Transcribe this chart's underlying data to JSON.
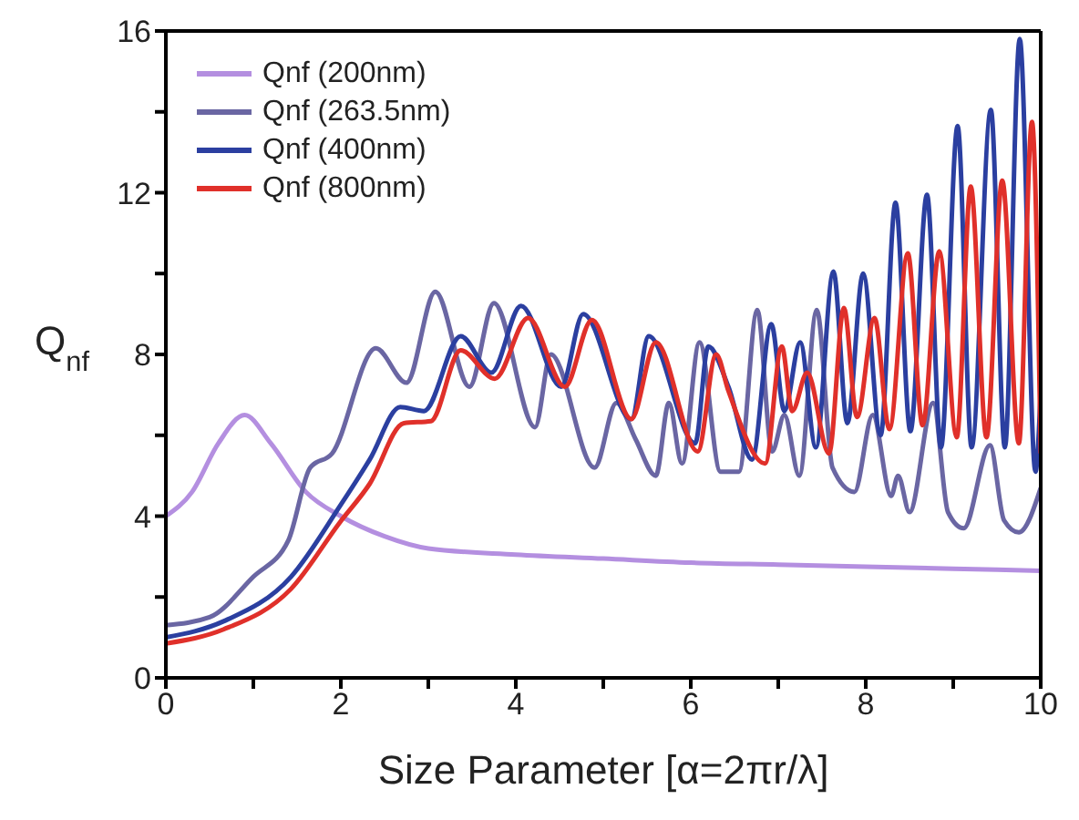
{
  "chart_data": {
    "type": "line",
    "xlabel": "Size Parameter [α=2πr/λ]",
    "ylabel": "Q$_{nf}$",
    "xlim": [
      0,
      10
    ],
    "ylim": [
      0,
      16
    ],
    "xticks": [
      0,
      {
        "value": 1,
        "label": null
      },
      2,
      {
        "value": 3,
        "label": null
      },
      4,
      {
        "value": 5,
        "label": null
      },
      6,
      {
        "value": 7,
        "label": null
      },
      8,
      {
        "value": 9,
        "label": null
      },
      10
    ],
    "yticks": [
      0,
      {
        "value": 2,
        "label": null
      },
      4,
      {
        "value": 6,
        "label": null
      },
      8,
      {
        "value": 10,
        "label": null
      },
      12,
      {
        "value": 14,
        "label": null
      },
      16
    ],
    "grid": false,
    "legend": "top left",
    "marker": "none",
    "line_style": "solid",
    "series": [
      {
        "name": "Qnf (200nm)",
        "color": "#b48fe0",
        "x": [
          0,
          0.3,
          0.6,
          0.9,
          1.2,
          1.6,
          2.0,
          2.5,
          3,
          4,
          5,
          6,
          7,
          8,
          9,
          10
        ],
        "values": [
          4.0,
          4.6,
          5.8,
          6.5,
          5.8,
          4.6,
          4.0,
          3.5,
          3.2,
          3.05,
          2.95,
          2.85,
          2.8,
          2.75,
          2.7,
          2.65
        ]
      },
      {
        "name": "Qnf (263.5nm)",
        "color": "#6a66a3",
        "x": [
          0,
          0.5,
          1.0,
          1.4,
          1.65,
          1.9,
          2.4,
          2.75,
          3.08,
          3.47,
          3.75,
          4.22,
          4.4,
          4.9,
          5.15,
          5.37,
          5.6,
          5.75,
          5.9,
          6.1,
          6.34,
          6.55,
          6.76,
          6.93,
          7.07,
          7.24,
          7.44,
          7.62,
          7.87,
          8.08,
          8.29,
          8.37,
          8.5,
          8.77,
          8.94,
          9.12,
          9.42,
          9.58,
          9.75,
          10.0
        ],
        "values": [
          1.3,
          1.5,
          2.5,
          3.4,
          5.2,
          5.55,
          8.15,
          7.3,
          9.55,
          7.2,
          9.27,
          6.2,
          8.0,
          5.2,
          6.8,
          5.9,
          5.0,
          6.8,
          5.3,
          8.3,
          5.1,
          5.1,
          9.1,
          5.6,
          6.5,
          5.0,
          9.1,
          5.2,
          4.6,
          6.5,
          4.5,
          5.0,
          4.1,
          6.8,
          4.1,
          3.7,
          5.75,
          3.9,
          3.6,
          4.7
        ]
      },
      {
        "name": "Qnf (400nm)",
        "color": "#2b3fa0",
        "x": [
          0,
          0.66,
          1.43,
          1.99,
          2.33,
          2.68,
          2.95,
          3.37,
          3.72,
          4.06,
          4.52,
          4.77,
          5.32,
          5.52,
          6.05,
          6.2,
          6.43,
          6.7,
          6.92,
          7.07,
          7.25,
          7.43,
          7.63,
          7.79,
          7.97,
          8.17,
          8.34,
          8.51,
          8.7,
          8.86,
          9.05,
          9.21,
          9.43,
          9.59,
          9.76,
          9.94,
          10.0
        ],
        "values": [
          1.0,
          1.4,
          2.5,
          4.25,
          5.4,
          6.7,
          6.6,
          8.45,
          7.55,
          9.2,
          7.2,
          9.0,
          6.4,
          8.45,
          5.8,
          8.2,
          7.2,
          5.4,
          8.75,
          6.6,
          8.3,
          5.7,
          10.05,
          6.3,
          10.0,
          6.0,
          11.75,
          6.1,
          11.95,
          5.7,
          13.65,
          5.7,
          14.05,
          5.7,
          15.8,
          5.1,
          7.1
        ]
      },
      {
        "name": "Qnf (800nm)",
        "color": "#e0302a",
        "x": [
          0,
          0.66,
          1.43,
          1.99,
          2.33,
          2.72,
          3.03,
          3.37,
          3.76,
          4.14,
          4.56,
          4.87,
          5.32,
          5.6,
          6.08,
          6.29,
          6.43,
          6.85,
          7.04,
          7.16,
          7.33,
          7.58,
          7.75,
          7.9,
          8.1,
          8.27,
          8.48,
          8.65,
          8.84,
          9.04,
          9.2,
          9.38,
          9.56,
          9.75,
          9.9,
          10.0
        ],
        "values": [
          0.85,
          1.2,
          2.2,
          3.85,
          4.8,
          6.3,
          6.35,
          8.1,
          7.4,
          8.9,
          7.2,
          8.85,
          6.4,
          8.3,
          5.6,
          8.0,
          7.1,
          5.3,
          8.2,
          6.6,
          7.55,
          5.55,
          9.15,
          6.45,
          8.9,
          6.15,
          10.5,
          6.25,
          10.55,
          5.95,
          12.15,
          5.95,
          12.3,
          5.8,
          13.75,
          5.55
        ]
      }
    ]
  }
}
